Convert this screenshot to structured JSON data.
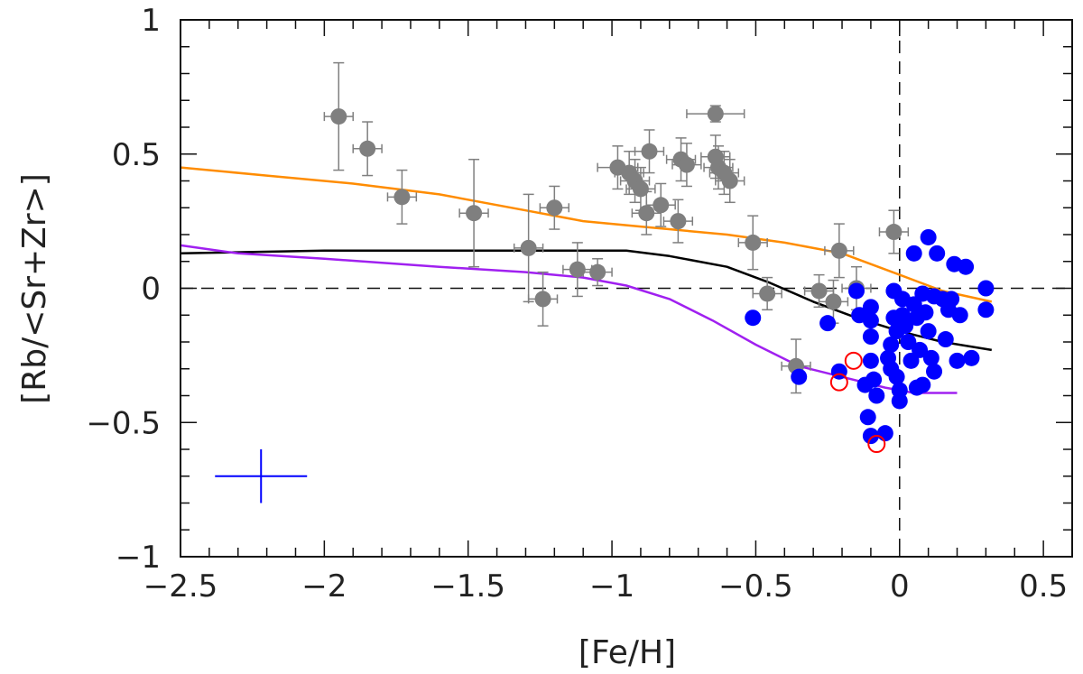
{
  "chart_data": {
    "type": "scatter",
    "title": "",
    "xlabel": "[Fe/H]",
    "ylabel": "[Rb/<Sr+Zr>]",
    "xlim": [
      -2.5,
      0.6
    ],
    "ylim": [
      -1,
      1
    ],
    "xticks": [
      -2.5,
      -2,
      -1.5,
      -1,
      -0.5,
      0,
      0.5
    ],
    "xtick_labels": [
      "−2.5",
      "−2",
      "−1.5",
      "−1",
      "−0.5",
      "0",
      "0.5"
    ],
    "yticks": [
      -1,
      -0.5,
      0,
      0.5,
      1
    ],
    "ytick_labels": [
      "−1",
      "−0.5",
      "0",
      "0.5",
      "1"
    ],
    "colors": {
      "gray": "#7f7f7f",
      "blue": "#0000ff",
      "red": "#ff0000",
      "orange": "#ff8c00",
      "black": "#000000",
      "purple": "#a020f0"
    },
    "reference_lines": {
      "horizontal": 0,
      "vertical": 0
    },
    "series": [
      {
        "name": "gray-points-with-errors",
        "kind": "errorbar",
        "color": "#7f7f7f",
        "points": [
          {
            "x": -1.95,
            "y": 0.64,
            "xerr": 0.05,
            "yerr": 0.2
          },
          {
            "x": -1.85,
            "y": 0.52,
            "xerr": 0.05,
            "yerr": 0.1
          },
          {
            "x": -1.73,
            "y": 0.34,
            "xerr": 0.05,
            "yerr": 0.1
          },
          {
            "x": -1.48,
            "y": 0.28,
            "xerr": 0.05,
            "yerr": 0.2
          },
          {
            "x": -1.29,
            "y": 0.15,
            "xerr": 0.05,
            "yerr": 0.2
          },
          {
            "x": -1.24,
            "y": -0.04,
            "xerr": 0.05,
            "yerr": 0.1
          },
          {
            "x": -1.2,
            "y": 0.3,
            "xerr": 0.05,
            "yerr": 0.08
          },
          {
            "x": -1.12,
            "y": 0.07,
            "xerr": 0.05,
            "yerr": 0.1
          },
          {
            "x": -1.05,
            "y": 0.06,
            "xerr": 0.05,
            "yerr": 0.05
          },
          {
            "x": -0.98,
            "y": 0.45,
            "xerr": 0.07,
            "yerr": 0.08
          },
          {
            "x": -0.94,
            "y": 0.43,
            "xerr": 0.05,
            "yerr": 0.08
          },
          {
            "x": -0.92,
            "y": 0.4,
            "xerr": 0.05,
            "yerr": 0.08
          },
          {
            "x": -0.9,
            "y": 0.37,
            "xerr": 0.05,
            "yerr": 0.08
          },
          {
            "x": -0.88,
            "y": 0.28,
            "xerr": 0.05,
            "yerr": 0.08
          },
          {
            "x": -0.87,
            "y": 0.51,
            "xerr": 0.05,
            "yerr": 0.08
          },
          {
            "x": -0.83,
            "y": 0.31,
            "xerr": 0.05,
            "yerr": 0.08
          },
          {
            "x": -0.77,
            "y": 0.25,
            "xerr": 0.05,
            "yerr": 0.08
          },
          {
            "x": -0.76,
            "y": 0.48,
            "xerr": 0.05,
            "yerr": 0.08
          },
          {
            "x": -0.74,
            "y": 0.46,
            "xerr": 0.05,
            "yerr": 0.08
          },
          {
            "x": -0.64,
            "y": 0.65,
            "xerr": 0.1,
            "yerr": 0.03
          },
          {
            "x": -0.64,
            "y": 0.49,
            "xerr": 0.05,
            "yerr": 0.08
          },
          {
            "x": -0.63,
            "y": 0.45,
            "xerr": 0.05,
            "yerr": 0.08
          },
          {
            "x": -0.61,
            "y": 0.43,
            "xerr": 0.05,
            "yerr": 0.08
          },
          {
            "x": -0.59,
            "y": 0.4,
            "xerr": 0.05,
            "yerr": 0.08
          },
          {
            "x": -0.51,
            "y": 0.17,
            "xerr": 0.05,
            "yerr": 0.1
          },
          {
            "x": -0.46,
            "y": -0.02,
            "xerr": 0.05,
            "yerr": 0.06
          },
          {
            "x": -0.36,
            "y": -0.29,
            "xerr": 0.05,
            "yerr": 0.1
          },
          {
            "x": -0.28,
            "y": -0.01,
            "xerr": 0.05,
            "yerr": 0.06
          },
          {
            "x": -0.23,
            "y": -0.05,
            "xerr": 0.05,
            "yerr": 0.08
          },
          {
            "x": -0.21,
            "y": 0.14,
            "xerr": 0.05,
            "yerr": 0.1
          },
          {
            "x": -0.15,
            "y": 0.0,
            "xerr": 0.05,
            "yerr": 0.08
          },
          {
            "x": -0.02,
            "y": 0.21,
            "xerr": 0.05,
            "yerr": 0.08
          }
        ]
      },
      {
        "name": "blue-points",
        "kind": "filled-circle",
        "color": "#0000ff",
        "points": [
          {
            "x": -0.51,
            "y": -0.11
          },
          {
            "x": -0.35,
            "y": -0.33
          },
          {
            "x": -0.25,
            "y": -0.13
          },
          {
            "x": -0.21,
            "y": -0.31
          },
          {
            "x": -0.15,
            "y": -0.01
          },
          {
            "x": -0.14,
            "y": -0.1
          },
          {
            "x": -0.12,
            "y": -0.36
          },
          {
            "x": -0.11,
            "y": -0.48
          },
          {
            "x": -0.1,
            "y": -0.55
          },
          {
            "x": -0.1,
            "y": -0.07
          },
          {
            "x": -0.1,
            "y": -0.12
          },
          {
            "x": -0.1,
            "y": -0.18
          },
          {
            "x": -0.1,
            "y": -0.27
          },
          {
            "x": -0.09,
            "y": -0.34
          },
          {
            "x": -0.08,
            "y": -0.4
          },
          {
            "x": -0.05,
            "y": -0.54
          },
          {
            "x": -0.04,
            "y": -0.26
          },
          {
            "x": -0.03,
            "y": -0.21
          },
          {
            "x": -0.03,
            "y": -0.3
          },
          {
            "x": -0.02,
            "y": -0.01
          },
          {
            "x": -0.02,
            "y": -0.11
          },
          {
            "x": -0.01,
            "y": -0.16
          },
          {
            "x": -0.01,
            "y": -0.33
          },
          {
            "x": 0.0,
            "y": -0.38
          },
          {
            "x": 0.0,
            "y": -0.42
          },
          {
            "x": 0.01,
            "y": -0.04
          },
          {
            "x": 0.01,
            "y": -0.1
          },
          {
            "x": 0.02,
            "y": -0.14
          },
          {
            "x": 0.03,
            "y": -0.2
          },
          {
            "x": 0.04,
            "y": -0.27
          },
          {
            "x": 0.05,
            "y": -0.06
          },
          {
            "x": 0.05,
            "y": 0.13
          },
          {
            "x": 0.06,
            "y": -0.37
          },
          {
            "x": 0.06,
            "y": -0.11
          },
          {
            "x": 0.07,
            "y": -0.23
          },
          {
            "x": 0.08,
            "y": -0.02
          },
          {
            "x": 0.08,
            "y": -0.36
          },
          {
            "x": 0.09,
            "y": -0.09
          },
          {
            "x": 0.1,
            "y": -0.16
          },
          {
            "x": 0.1,
            "y": 0.19
          },
          {
            "x": 0.11,
            "y": -0.26
          },
          {
            "x": 0.12,
            "y": -0.31
          },
          {
            "x": 0.12,
            "y": -0.03
          },
          {
            "x": 0.13,
            "y": 0.13
          },
          {
            "x": 0.15,
            "y": -0.04
          },
          {
            "x": 0.16,
            "y": -0.19
          },
          {
            "x": 0.17,
            "y": -0.08
          },
          {
            "x": 0.18,
            "y": -0.04
          },
          {
            "x": 0.19,
            "y": 0.09
          },
          {
            "x": 0.2,
            "y": -0.27
          },
          {
            "x": 0.21,
            "y": -0.1
          },
          {
            "x": 0.23,
            "y": 0.08
          },
          {
            "x": 0.25,
            "y": -0.26
          },
          {
            "x": 0.3,
            "y": 0.0
          },
          {
            "x": 0.3,
            "y": -0.08
          }
        ]
      },
      {
        "name": "red-open-circles",
        "kind": "open-circle",
        "color": "#ff0000",
        "points": [
          {
            "x": -0.21,
            "y": -0.35
          },
          {
            "x": -0.16,
            "y": -0.27
          },
          {
            "x": -0.08,
            "y": -0.58
          }
        ]
      },
      {
        "name": "orange-model",
        "kind": "line",
        "color": "#ff8c00",
        "points": [
          {
            "x": -2.5,
            "y": 0.45
          },
          {
            "x": -2.2,
            "y": 0.42
          },
          {
            "x": -1.9,
            "y": 0.39
          },
          {
            "x": -1.6,
            "y": 0.35
          },
          {
            "x": -1.3,
            "y": 0.29
          },
          {
            "x": -1.1,
            "y": 0.25
          },
          {
            "x": -0.9,
            "y": 0.23
          },
          {
            "x": -0.6,
            "y": 0.2
          },
          {
            "x": -0.4,
            "y": 0.17
          },
          {
            "x": -0.2,
            "y": 0.13
          },
          {
            "x": 0.0,
            "y": 0.05
          },
          {
            "x": 0.15,
            "y": -0.01
          },
          {
            "x": 0.32,
            "y": -0.05
          }
        ]
      },
      {
        "name": "black-model",
        "kind": "line",
        "color": "#000000",
        "points": [
          {
            "x": -2.5,
            "y": 0.13
          },
          {
            "x": -2.0,
            "y": 0.14
          },
          {
            "x": -1.5,
            "y": 0.14
          },
          {
            "x": -1.2,
            "y": 0.14
          },
          {
            "x": -0.95,
            "y": 0.14
          },
          {
            "x": -0.8,
            "y": 0.12
          },
          {
            "x": -0.6,
            "y": 0.08
          },
          {
            "x": -0.45,
            "y": 0.02
          },
          {
            "x": -0.3,
            "y": -0.05
          },
          {
            "x": -0.15,
            "y": -0.11
          },
          {
            "x": 0.0,
            "y": -0.16
          },
          {
            "x": 0.15,
            "y": -0.2
          },
          {
            "x": 0.32,
            "y": -0.23
          }
        ]
      },
      {
        "name": "purple-model",
        "kind": "line",
        "color": "#a020f0",
        "points": [
          {
            "x": -2.5,
            "y": 0.16
          },
          {
            "x": -2.3,
            "y": 0.13
          },
          {
            "x": -2.0,
            "y": 0.11
          },
          {
            "x": -1.6,
            "y": 0.08
          },
          {
            "x": -1.3,
            "y": 0.06
          },
          {
            "x": -1.1,
            "y": 0.04
          },
          {
            "x": -0.95,
            "y": 0.01
          },
          {
            "x": -0.8,
            "y": -0.04
          },
          {
            "x": -0.65,
            "y": -0.12
          },
          {
            "x": -0.5,
            "y": -0.21
          },
          {
            "x": -0.35,
            "y": -0.29
          },
          {
            "x": -0.2,
            "y": -0.33
          },
          {
            "x": -0.05,
            "y": -0.37
          },
          {
            "x": 0.05,
            "y": -0.39
          },
          {
            "x": 0.2,
            "y": -0.39
          }
        ]
      }
    ],
    "error_cross": {
      "x": -2.22,
      "y": -0.7,
      "xerr": 0.16,
      "yerr": 0.1,
      "color": "#0000ff"
    }
  }
}
